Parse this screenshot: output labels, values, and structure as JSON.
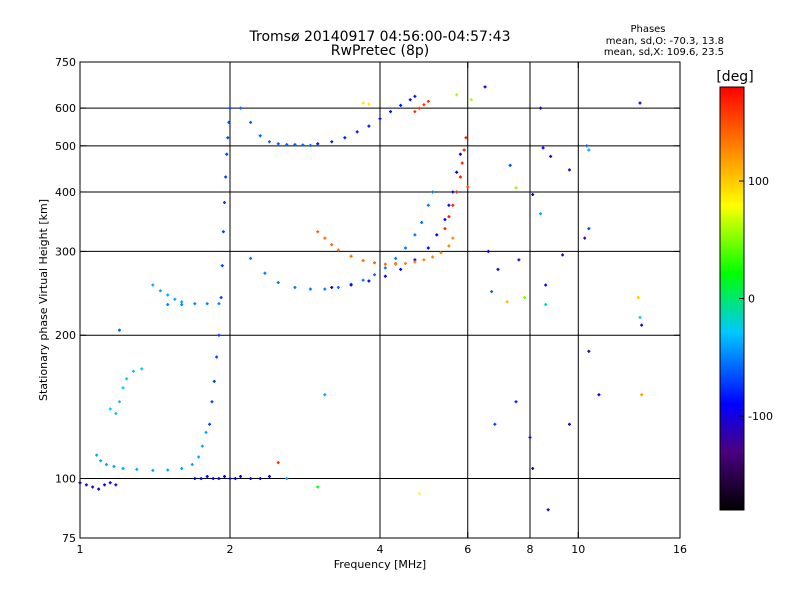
{
  "chart_data": {
    "type": "scatter",
    "title": "Tromsø 20140917 04:56:00-04:57:43",
    "subtitle": "RwPretec (8p)",
    "xlabel": "Frequency [MHz]",
    "ylabel": "Stationary phase Virtual Height [km]",
    "x_scale": "log",
    "y_scale": "log",
    "xlim": [
      1,
      16
    ],
    "ylim": [
      75,
      750
    ],
    "x_ticks": [
      1,
      2,
      4,
      6,
      8,
      10,
      16
    ],
    "x_tick_labels": [
      "1",
      "2",
      "4",
      "6",
      "8",
      "10",
      "16"
    ],
    "y_ticks": [
      75,
      100,
      200,
      300,
      400,
      500,
      600,
      750
    ],
    "y_tick_labels": [
      "75",
      "100",
      "200",
      "300",
      "400",
      "500",
      "600",
      "750"
    ],
    "grid_x": [
      2,
      4,
      6,
      8,
      10
    ],
    "grid_y": [
      100,
      200,
      300,
      400,
      500,
      600
    ],
    "phase_info": {
      "heading": "Phases",
      "line_o": "mean, sd,O: -70.3, 13.8",
      "line_x": "mean, sd,X: 109.6, 23.5"
    },
    "colorbar": {
      "label": "[deg]",
      "range": [
        -180,
        180
      ],
      "ticks": [
        100,
        0,
        -100
      ],
      "tick_labels": [
        "100",
        "0",
        "-100"
      ]
    },
    "traces": [
      {
        "name": "",
        "phase": -100,
        "points": [
          [
            1.0,
            98
          ],
          [
            1.03,
            97
          ],
          [
            1.06,
            96
          ],
          [
            1.09,
            95
          ],
          [
            1.12,
            97
          ],
          [
            1.15,
            98
          ],
          [
            1.18,
            97
          ]
        ]
      },
      {
        "name": "",
        "phase": -40,
        "points": [
          [
            1.08,
            112
          ],
          [
            1.1,
            109
          ],
          [
            1.13,
            107
          ],
          [
            1.17,
            106
          ],
          [
            1.22,
            105
          ],
          [
            1.3,
            104.5
          ],
          [
            1.4,
            104
          ],
          [
            1.5,
            104.2
          ],
          [
            1.6,
            105
          ],
          [
            1.68,
            107
          ],
          [
            1.73,
            111
          ],
          [
            1.76,
            117
          ],
          [
            1.79,
            125
          ]
        ]
      },
      {
        "name": "",
        "phase": -30,
        "points": [
          [
            1.15,
            140
          ],
          [
            1.18,
            137
          ],
          [
            1.2,
            145
          ],
          [
            1.22,
            155
          ],
          [
            1.24,
            162
          ],
          [
            1.28,
            168
          ],
          [
            1.33,
            170
          ]
        ]
      },
      {
        "name": "",
        "phase": -40,
        "points": [
          [
            1.4,
            255
          ],
          [
            1.45,
            248
          ],
          [
            1.5,
            243
          ],
          [
            1.55,
            238
          ],
          [
            1.6,
            235
          ]
        ]
      },
      {
        "name": "",
        "phase": -50,
        "points": [
          [
            1.5,
            232
          ],
          [
            1.6,
            232
          ],
          [
            1.7,
            233
          ],
          [
            1.8,
            233
          ],
          [
            1.9,
            233
          ]
        ]
      },
      {
        "name": "",
        "phase": -70,
        "points": [
          [
            1.82,
            130
          ],
          [
            1.84,
            145
          ],
          [
            1.86,
            160
          ],
          [
            1.88,
            180
          ],
          [
            1.9,
            200
          ],
          [
            1.92,
            240
          ],
          [
            1.93,
            280
          ],
          [
            1.94,
            330
          ],
          [
            1.95,
            380
          ],
          [
            1.96,
            430
          ],
          [
            1.97,
            480
          ],
          [
            1.98,
            520
          ],
          [
            1.99,
            560
          ],
          [
            2.0,
            600
          ]
        ]
      },
      {
        "name": "",
        "phase": -90,
        "points": [
          [
            1.7,
            100
          ],
          [
            1.75,
            100
          ],
          [
            1.8,
            101
          ],
          [
            1.85,
            100
          ],
          [
            1.9,
            100
          ],
          [
            1.95,
            101
          ],
          [
            2.0,
            100
          ],
          [
            2.05,
            100
          ],
          [
            2.1,
            101
          ],
          [
            2.2,
            100
          ],
          [
            2.3,
            100
          ],
          [
            2.4,
            101
          ]
        ]
      },
      {
        "name": "",
        "phase": -60,
        "points": [
          [
            2.1,
            600
          ],
          [
            2.2,
            560
          ],
          [
            2.3,
            525
          ],
          [
            2.4,
            510
          ],
          [
            2.5,
            505
          ],
          [
            2.6,
            503
          ],
          [
            2.7,
            503
          ],
          [
            2.8,
            502
          ],
          [
            2.9,
            501
          ]
        ]
      },
      {
        "name": "",
        "phase": -85,
        "points": [
          [
            3.0,
            505
          ],
          [
            3.2,
            510
          ],
          [
            3.4,
            520
          ],
          [
            3.6,
            535
          ],
          [
            3.8,
            550
          ],
          [
            4.0,
            570
          ],
          [
            4.2,
            590
          ],
          [
            4.4,
            608
          ],
          [
            4.6,
            625
          ],
          [
            4.7,
            635
          ]
        ]
      },
      {
        "name": "",
        "phase": -55,
        "points": [
          [
            2.2,
            290
          ],
          [
            2.35,
            270
          ],
          [
            2.5,
            258
          ],
          [
            2.7,
            252
          ],
          [
            2.9,
            250
          ],
          [
            3.1,
            250
          ],
          [
            3.3,
            252
          ],
          [
            3.5,
            256
          ],
          [
            3.7,
            261
          ],
          [
            3.9,
            268
          ],
          [
            4.1,
            277
          ],
          [
            4.3,
            290
          ],
          [
            4.5,
            305
          ],
          [
            4.7,
            325
          ],
          [
            4.85,
            345
          ],
          [
            5.0,
            375
          ],
          [
            5.1,
            400
          ]
        ]
      },
      {
        "name": "",
        "phase": -90,
        "points": [
          [
            3.2,
            252
          ],
          [
            3.5,
            255
          ],
          [
            3.8,
            260
          ],
          [
            4.1,
            266
          ],
          [
            4.4,
            275
          ],
          [
            4.7,
            288
          ],
          [
            5.0,
            305
          ],
          [
            5.2,
            325
          ],
          [
            5.4,
            350
          ],
          [
            5.5,
            375
          ],
          [
            5.6,
            400
          ],
          [
            5.7,
            440
          ],
          [
            5.8,
            480
          ]
        ]
      },
      {
        "name": "",
        "phase": 140,
        "points": [
          [
            3.0,
            330
          ],
          [
            3.1,
            320
          ],
          [
            3.2,
            310
          ],
          [
            3.3,
            302
          ],
          [
            3.5,
            293
          ],
          [
            3.7,
            287
          ],
          [
            3.9,
            284
          ],
          [
            4.1,
            282
          ],
          [
            4.3,
            283
          ]
        ]
      },
      {
        "name": "",
        "phase": 130,
        "points": [
          [
            4.3,
            282
          ],
          [
            4.5,
            283
          ],
          [
            4.7,
            285
          ],
          [
            4.9,
            288
          ],
          [
            5.1,
            292
          ],
          [
            5.3,
            298
          ],
          [
            5.5,
            308
          ],
          [
            5.6,
            320
          ]
        ]
      },
      {
        "name": "",
        "phase": 170,
        "points": [
          [
            5.4,
            335
          ],
          [
            5.5,
            355
          ],
          [
            5.6,
            375
          ],
          [
            5.7,
            400
          ],
          [
            5.8,
            430
          ],
          [
            5.85,
            460
          ],
          [
            5.9,
            490
          ],
          [
            5.95,
            520
          ]
        ]
      },
      {
        "name": "",
        "phase": 160,
        "points": [
          [
            4.7,
            590
          ],
          [
            4.8,
            600
          ],
          [
            4.9,
            610
          ],
          [
            5.0,
            620
          ]
        ]
      },
      {
        "name": "",
        "phase": 90,
        "points": [
          [
            3.7,
            615
          ],
          [
            3.8,
            612
          ]
        ]
      }
    ],
    "scatter_points": [
      [
        8.4,
        600,
        -110
      ],
      [
        10.5,
        490,
        -40
      ],
      [
        13.3,
        615,
        -100
      ],
      [
        8.5,
        495,
        -90
      ],
      [
        8.8,
        475,
        -110
      ],
      [
        9.6,
        445,
        -110
      ],
      [
        10.3,
        320,
        -120
      ],
      [
        10.5,
        335,
        -70
      ],
      [
        6.6,
        300,
        -100
      ],
      [
        6.9,
        275,
        -90
      ],
      [
        7.6,
        288,
        -110
      ],
      [
        9.3,
        295,
        -110
      ],
      [
        8.6,
        255,
        -90
      ],
      [
        6.7,
        247,
        -60
      ],
      [
        7.8,
        240,
        50
      ],
      [
        7.2,
        235,
        110
      ],
      [
        8.6,
        232,
        -20
      ],
      [
        13.2,
        240,
        100
      ],
      [
        13.3,
        218,
        -20
      ],
      [
        13.4,
        210,
        -100
      ],
      [
        10.5,
        185,
        -110
      ],
      [
        11.0,
        150,
        -90
      ],
      [
        9.6,
        130,
        -110
      ],
      [
        8.0,
        122,
        -110
      ],
      [
        8.1,
        105,
        -120
      ],
      [
        8.7,
        86,
        -100
      ],
      [
        7.5,
        145,
        -80
      ],
      [
        6.8,
        130,
        -70
      ],
      [
        13.4,
        150,
        120
      ],
      [
        3.1,
        150,
        -40
      ],
      [
        1.2,
        205,
        -60
      ],
      [
        4.8,
        93,
        80
      ],
      [
        3.0,
        96,
        20
      ],
      [
        6.0,
        410,
        150
      ],
      [
        6.1,
        625,
        60
      ],
      [
        6.5,
        665,
        -100
      ],
      [
        5.7,
        640,
        60
      ],
      [
        10.4,
        500,
        -60
      ],
      [
        7.5,
        408,
        50
      ],
      [
        7.3,
        455,
        -70
      ],
      [
        8.1,
        395,
        -90
      ],
      [
        8.4,
        360,
        -40
      ],
      [
        2.5,
        108,
        160
      ],
      [
        2.6,
        100,
        -40
      ]
    ]
  }
}
